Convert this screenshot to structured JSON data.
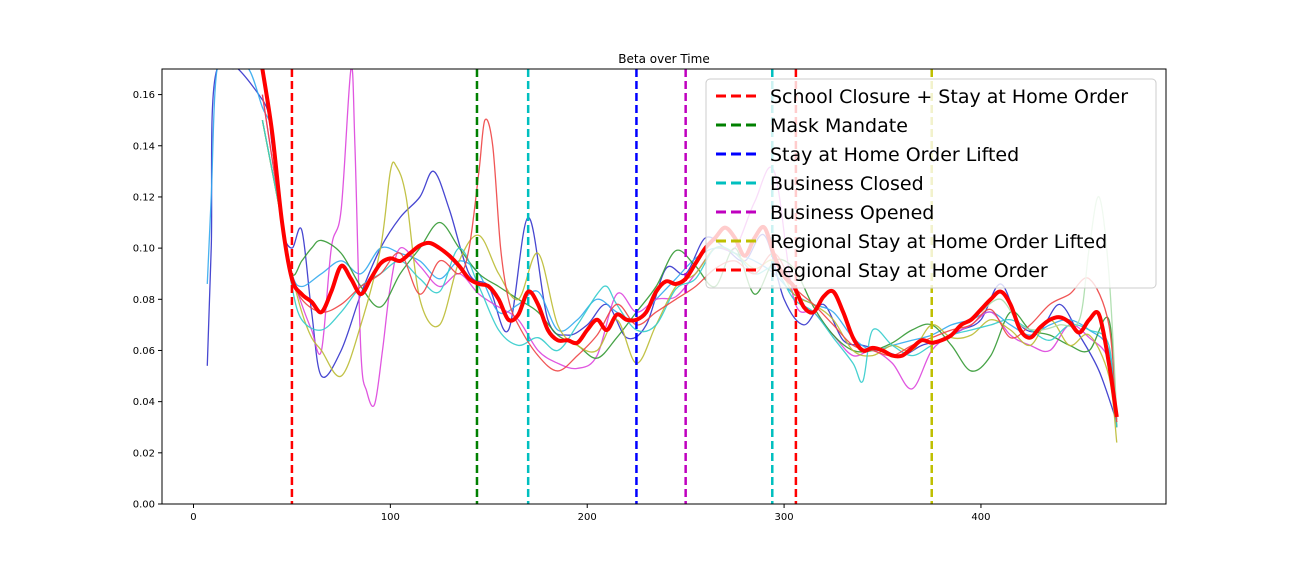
{
  "chart_data": {
    "type": "line",
    "title": "Beta over Time",
    "xlabel": "",
    "ylabel": "",
    "xlim": [
      -16,
      494
    ],
    "ylim": [
      0,
      0.17
    ],
    "x_ticks": [
      0,
      100,
      200,
      300,
      400
    ],
    "y_ticks": [
      0.0,
      0.02,
      0.04,
      0.06,
      0.08,
      0.1,
      0.12,
      0.14,
      0.16
    ],
    "grid": false,
    "legend_position": "top-right",
    "events": [
      {
        "name": "School Closure + Stay at Home Order",
        "x": 50,
        "color": "#ff0000"
      },
      {
        "name": "Mask Mandate",
        "x": 144,
        "color": "#008000"
      },
      {
        "name": "Stay at Home Order Lifted",
        "x": 225,
        "color": "#0000ff"
      },
      {
        "name": "Business Closed",
        "x": 170,
        "color": "#00bfbf"
      },
      {
        "name": "Business Opened",
        "x": 250,
        "color": "#bf00bf"
      },
      {
        "name": "Regional Stay at Home Order Lifted",
        "x": 375,
        "color": "#bfbf00"
      },
      {
        "name": "Regional Stay at Home Order",
        "x": 306,
        "color": "#ff0000"
      }
    ],
    "extra_event_lines": [
      {
        "x": 294,
        "color": "#00bfbf"
      }
    ],
    "mean_series": {
      "color": "#ff0000",
      "x": [
        35,
        40,
        45,
        50,
        55,
        60,
        65,
        70,
        75,
        80,
        85,
        90,
        95,
        100,
        105,
        110,
        115,
        120,
        125,
        130,
        135,
        140,
        145,
        150,
        155,
        160,
        165,
        170,
        175,
        180,
        185,
        190,
        195,
        200,
        205,
        210,
        215,
        220,
        225,
        230,
        235,
        240,
        245,
        250,
        255,
        260,
        265,
        270,
        275,
        280,
        285,
        290,
        295,
        300,
        305,
        310,
        315,
        320,
        325,
        330,
        335,
        340,
        345,
        350,
        355,
        360,
        365,
        370,
        375,
        380,
        385,
        390,
        395,
        400,
        405,
        410,
        415,
        420,
        425,
        430,
        435,
        440,
        445,
        450,
        455,
        460,
        465,
        469
      ],
      "y": [
        0.17,
        0.145,
        0.11,
        0.088,
        0.082,
        0.079,
        0.075,
        0.083,
        0.093,
        0.088,
        0.082,
        0.088,
        0.094,
        0.096,
        0.095,
        0.098,
        0.101,
        0.102,
        0.1,
        0.097,
        0.093,
        0.088,
        0.086,
        0.085,
        0.08,
        0.072,
        0.074,
        0.083,
        0.078,
        0.068,
        0.064,
        0.064,
        0.063,
        0.068,
        0.072,
        0.068,
        0.074,
        0.072,
        0.072,
        0.075,
        0.083,
        0.087,
        0.086,
        0.088,
        0.094,
        0.1,
        0.104,
        0.108,
        0.104,
        0.097,
        0.104,
        0.108,
        0.097,
        0.089,
        0.085,
        0.077,
        0.075,
        0.081,
        0.083,
        0.075,
        0.065,
        0.06,
        0.061,
        0.06,
        0.058,
        0.058,
        0.061,
        0.064,
        0.063,
        0.064,
        0.066,
        0.07,
        0.072,
        0.076,
        0.08,
        0.083,
        0.078,
        0.068,
        0.065,
        0.069,
        0.072,
        0.073,
        0.071,
        0.067,
        0.072,
        0.074,
        0.055,
        0.034
      ]
    },
    "series": [
      {
        "color": "#3333cc",
        "x": [
          7,
          9,
          12,
          35,
          40,
          45,
          50,
          55,
          60,
          65,
          75,
          85,
          95,
          105,
          115,
          122,
          130,
          140,
          150,
          160,
          170,
          180,
          190,
          200,
          210,
          220,
          230,
          240,
          250,
          260,
          270,
          280,
          290,
          300,
          310,
          320,
          330,
          340,
          350,
          360,
          370,
          380,
          390,
          400,
          410,
          420,
          430,
          440,
          450,
          460,
          469
        ],
        "y": [
          0.054,
          0.1,
          0.17,
          0.158,
          0.14,
          0.108,
          0.1,
          0.107,
          0.075,
          0.05,
          0.06,
          0.082,
          0.1,
          0.112,
          0.12,
          0.13,
          0.115,
          0.09,
          0.085,
          0.068,
          0.112,
          0.072,
          0.066,
          0.07,
          0.078,
          0.065,
          0.07,
          0.092,
          0.09,
          0.104,
          0.1,
          0.095,
          0.105,
          0.08,
          0.07,
          0.078,
          0.064,
          0.062,
          0.06,
          0.058,
          0.062,
          0.064,
          0.068,
          0.072,
          0.086,
          0.07,
          0.068,
          0.078,
          0.066,
          0.052,
          0.032
        ]
      },
      {
        "color": "#33aaee",
        "x": [
          7,
          9,
          12,
          20,
          28,
          35,
          40,
          45,
          50,
          55,
          65,
          75,
          85,
          95,
          105,
          115,
          125,
          135,
          145,
          155,
          165,
          175,
          185,
          195,
          205,
          215,
          225,
          235,
          245,
          255,
          265,
          275,
          285,
          295,
          305,
          315,
          325,
          335,
          345,
          355,
          365,
          375,
          385,
          395,
          405,
          415,
          425,
          435,
          445,
          455,
          465,
          469
        ],
        "y": [
          0.086,
          0.12,
          0.17,
          0.17,
          0.17,
          0.155,
          0.145,
          0.11,
          0.09,
          0.085,
          0.09,
          0.095,
          0.09,
          0.1,
          0.098,
          0.095,
          0.088,
          0.095,
          0.09,
          0.075,
          0.078,
          0.083,
          0.068,
          0.072,
          0.08,
          0.075,
          0.072,
          0.08,
          0.088,
          0.096,
          0.1,
          0.098,
          0.095,
          0.09,
          0.082,
          0.078,
          0.075,
          0.065,
          0.06,
          0.062,
          0.064,
          0.066,
          0.07,
          0.072,
          0.075,
          0.07,
          0.066,
          0.07,
          0.072,
          0.068,
          0.06,
          0.033
        ]
      },
      {
        "color": "#dd44dd",
        "x": [
          35,
          45,
          50,
          55,
          60,
          65,
          70,
          75,
          80,
          82,
          85,
          88,
          92,
          96,
          100,
          105,
          115,
          125,
          135,
          145,
          155,
          165,
          175,
          185,
          195,
          205,
          215,
          225,
          235,
          245,
          255,
          265,
          275,
          285,
          295,
          305,
          315,
          325,
          335,
          345,
          355,
          365,
          375,
          385,
          395,
          405,
          415,
          425,
          435,
          445,
          455,
          465,
          469
        ],
        "y": [
          0.16,
          0.11,
          0.09,
          0.078,
          0.068,
          0.06,
          0.1,
          0.115,
          0.17,
          0.14,
          0.06,
          0.044,
          0.039,
          0.06,
          0.085,
          0.1,
          0.093,
          0.085,
          0.09,
          0.082,
          0.077,
          0.072,
          0.06,
          0.055,
          0.053,
          0.058,
          0.082,
          0.075,
          0.08,
          0.081,
          0.09,
          0.1,
          0.1,
          0.118,
          0.13,
          0.08,
          0.075,
          0.066,
          0.058,
          0.06,
          0.055,
          0.045,
          0.06,
          0.066,
          0.07,
          0.075,
          0.066,
          0.062,
          0.06,
          0.07,
          0.065,
          0.056,
          0.03
        ]
      },
      {
        "color": "#339933",
        "x": [
          35,
          45,
          50,
          55,
          60,
          65,
          75,
          85,
          95,
          105,
          115,
          125,
          135,
          145,
          155,
          165,
          175,
          185,
          195,
          205,
          215,
          225,
          235,
          245,
          255,
          265,
          275,
          285,
          295,
          305,
          315,
          325,
          335,
          345,
          355,
          365,
          375,
          385,
          395,
          405,
          415,
          425,
          435,
          445,
          455,
          465,
          469
        ],
        "y": [
          0.15,
          0.11,
          0.09,
          0.095,
          0.1,
          0.103,
          0.098,
          0.085,
          0.077,
          0.09,
          0.1,
          0.11,
          0.1,
          0.09,
          0.085,
          0.08,
          0.075,
          0.066,
          0.062,
          0.057,
          0.065,
          0.075,
          0.085,
          0.099,
          0.093,
          0.085,
          0.1,
          0.082,
          0.095,
          0.092,
          0.077,
          0.066,
          0.06,
          0.06,
          0.063,
          0.068,
          0.07,
          0.062,
          0.052,
          0.058,
          0.075,
          0.068,
          0.066,
          0.062,
          0.06,
          0.072,
          0.03
        ]
      },
      {
        "color": "#bbbb33",
        "x": [
          35,
          45,
          50,
          55,
          60,
          65,
          75,
          85,
          95,
          100,
          103,
          108,
          115,
          125,
          135,
          145,
          155,
          165,
          175,
          185,
          195,
          205,
          215,
          225,
          235,
          245,
          255,
          265,
          275,
          285,
          295,
          305,
          315,
          325,
          335,
          345,
          355,
          365,
          375,
          385,
          395,
          405,
          415,
          425,
          435,
          445,
          455,
          465,
          469
        ],
        "y": [
          0.15,
          0.11,
          0.09,
          0.075,
          0.065,
          0.06,
          0.05,
          0.07,
          0.1,
          0.13,
          0.132,
          0.12,
          0.08,
          0.07,
          0.095,
          0.105,
          0.09,
          0.08,
          0.098,
          0.07,
          0.062,
          0.06,
          0.072,
          0.055,
          0.07,
          0.085,
          0.09,
          0.1,
          0.098,
          0.092,
          0.095,
          0.082,
          0.078,
          0.072,
          0.06,
          0.058,
          0.062,
          0.06,
          0.07,
          0.065,
          0.066,
          0.072,
          0.068,
          0.062,
          0.072,
          0.062,
          0.066,
          0.05,
          0.024
        ]
      },
      {
        "color": "#33cccc",
        "x": [
          35,
          45,
          50,
          55,
          65,
          75,
          85,
          95,
          105,
          115,
          125,
          135,
          145,
          155,
          165,
          175,
          185,
          195,
          205,
          210,
          215,
          225,
          235,
          245,
          255,
          265,
          275,
          285,
          295,
          305,
          315,
          325,
          335,
          340,
          345,
          355,
          365,
          375,
          385,
          395,
          405,
          415,
          425,
          435,
          445,
          455,
          465,
          469
        ],
        "y": [
          0.15,
          0.11,
          0.085,
          0.072,
          0.068,
          0.075,
          0.085,
          0.09,
          0.095,
          0.088,
          0.083,
          0.1,
          0.085,
          0.068,
          0.062,
          0.065,
          0.06,
          0.07,
          0.082,
          0.085,
          0.078,
          0.068,
          0.07,
          0.084,
          0.088,
          0.1,
          0.098,
          0.09,
          0.092,
          0.08,
          0.075,
          0.065,
          0.055,
          0.048,
          0.068,
          0.062,
          0.058,
          0.062,
          0.066,
          0.068,
          0.07,
          0.072,
          0.068,
          0.064,
          0.07,
          0.068,
          0.062,
          0.03
        ]
      },
      {
        "color": "#ee4444",
        "x": [
          35,
          45,
          50,
          55,
          65,
          75,
          85,
          95,
          105,
          115,
          125,
          135,
          140,
          145,
          148,
          152,
          156,
          160,
          165,
          175,
          185,
          195,
          205,
          215,
          225,
          235,
          245,
          255,
          265,
          275,
          285,
          295,
          305,
          315,
          325,
          335,
          345,
          355,
          365,
          375,
          385,
          395,
          405,
          415,
          425,
          435,
          445,
          455,
          465,
          469
        ],
        "y": [
          0.16,
          0.11,
          0.09,
          0.08,
          0.075,
          0.078,
          0.085,
          0.09,
          0.098,
          0.082,
          0.095,
          0.09,
          0.1,
          0.13,
          0.15,
          0.14,
          0.1,
          0.08,
          0.07,
          0.058,
          0.052,
          0.058,
          0.066,
          0.078,
          0.07,
          0.075,
          0.08,
          0.085,
          0.092,
          0.095,
          0.09,
          0.098,
          0.085,
          0.078,
          0.07,
          0.062,
          0.06,
          0.058,
          0.062,
          0.065,
          0.068,
          0.07,
          0.076,
          0.065,
          0.07,
          0.078,
          0.082,
          0.088,
          0.07,
          0.032
        ]
      },
      {
        "color": "#aaddaa",
        "x": [
          400,
          410,
          420,
          430,
          440,
          450,
          455,
          460,
          465,
          469
        ],
        "y": [
          0.075,
          0.08,
          0.07,
          0.068,
          0.07,
          0.072,
          0.1,
          0.12,
          0.09,
          0.035
        ]
      }
    ]
  }
}
